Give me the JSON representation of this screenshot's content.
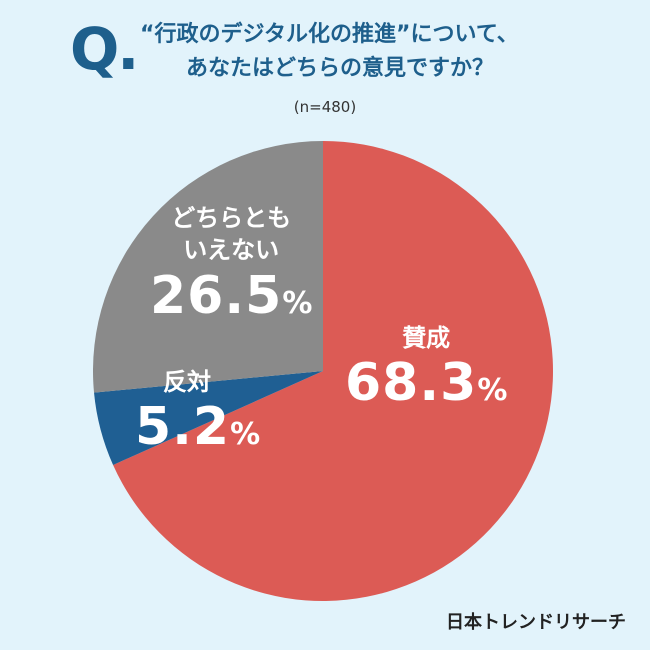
{
  "header": {
    "q_mark": "Q.",
    "question_line1": "“行政のデジタル化の推進”について、",
    "question_line2": "あなたはどちらの意見ですか？",
    "sample_size": "(n=480)"
  },
  "chart_data": {
    "type": "pie",
    "categories": [
      "賛成",
      "反対",
      "どちらともいえない"
    ],
    "values": [
      68.3,
      5.2,
      26.5
    ],
    "colors": [
      "#dc5b55",
      "#1f5f93",
      "#8a8a8a"
    ],
    "labels": [
      {
        "category": "賛成",
        "value": "68.3",
        "unit": "%"
      },
      {
        "category": "反対",
        "value": "5.2",
        "unit": "%"
      },
      {
        "category_line1": "どちらとも",
        "category_line2": "いえない",
        "value": "26.5",
        "unit": "%"
      }
    ]
  },
  "footer": {
    "brand": "日本トレンドリサーチ"
  }
}
